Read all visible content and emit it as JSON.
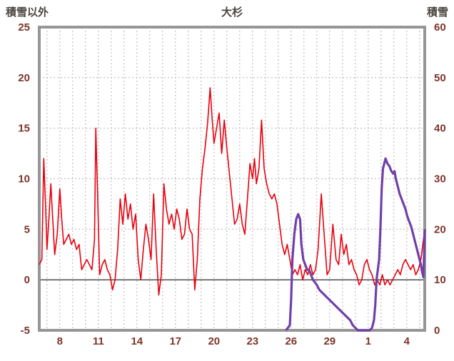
{
  "titles": {
    "left": "積雪以外",
    "center": "大杉",
    "right": "積雪"
  },
  "colors": {
    "temperature": "#e8000d",
    "snow": "#7040a8",
    "grid": "#b3b3b3",
    "frame": "#969696",
    "zero_line": "#4d4d4d",
    "tick_text": "#7d352b",
    "title_text": "#4a453f",
    "background": "#ffffff"
  },
  "chart_data": {
    "type": "line",
    "title": "大杉",
    "grid": true,
    "legend": "none",
    "left_axis": {
      "label": "積雪以外",
      "min": -5,
      "max": 25,
      "ticks": [
        25,
        20,
        15,
        10,
        5,
        0,
        -5
      ]
    },
    "right_axis": {
      "label": "積雪",
      "min": 0,
      "max": 60,
      "ticks": [
        60,
        50,
        40,
        30,
        20,
        10,
        0
      ]
    },
    "x_axis": {
      "day_min": 6.4,
      "day_max": 36.4,
      "minor_grid_step": 1,
      "tick_days": [
        8,
        11,
        14,
        17,
        20,
        23,
        26,
        29,
        32,
        35
      ],
      "tick_labels": [
        "8",
        "11",
        "14",
        "17",
        "20",
        "23",
        "26",
        "29",
        "1",
        "4"
      ]
    },
    "series": [
      {
        "name": "積雪以外",
        "axis": "left",
        "color": "#e8000d",
        "width": 1.6,
        "points": [
          [
            6.4,
            1.5
          ],
          [
            6.6,
            2
          ],
          [
            6.75,
            12
          ],
          [
            6.9,
            7
          ],
          [
            7.0,
            3
          ],
          [
            7.15,
            6
          ],
          [
            7.3,
            9.5
          ],
          [
            7.45,
            6
          ],
          [
            7.6,
            2.5
          ],
          [
            7.8,
            4.5
          ],
          [
            8.0,
            9
          ],
          [
            8.15,
            6
          ],
          [
            8.3,
            3.5
          ],
          [
            8.5,
            4
          ],
          [
            8.7,
            4.5
          ],
          [
            8.9,
            3.5
          ],
          [
            9.1,
            4
          ],
          [
            9.3,
            3
          ],
          [
            9.5,
            3.5
          ],
          [
            9.7,
            1
          ],
          [
            9.9,
            1.5
          ],
          [
            10.1,
            2
          ],
          [
            10.3,
            1.5
          ],
          [
            10.5,
            1
          ],
          [
            10.7,
            4
          ],
          [
            10.8,
            15
          ],
          [
            10.95,
            8
          ],
          [
            11.1,
            0.5
          ],
          [
            11.3,
            1.5
          ],
          [
            11.5,
            2
          ],
          [
            11.7,
            1
          ],
          [
            11.9,
            0.5
          ],
          [
            12.1,
            -1
          ],
          [
            12.3,
            0
          ],
          [
            12.5,
            3
          ],
          [
            12.7,
            8
          ],
          [
            12.9,
            5.5
          ],
          [
            13.1,
            8.5
          ],
          [
            13.3,
            6
          ],
          [
            13.5,
            7.5
          ],
          [
            13.7,
            5
          ],
          [
            13.9,
            6.5
          ],
          [
            14.1,
            2
          ],
          [
            14.3,
            0
          ],
          [
            14.5,
            3
          ],
          [
            14.7,
            5.5
          ],
          [
            14.9,
            4
          ],
          [
            15.1,
            2
          ],
          [
            15.3,
            8.5
          ],
          [
            15.5,
            3
          ],
          [
            15.7,
            -1.5
          ],
          [
            15.9,
            0.5
          ],
          [
            16.1,
            9.5
          ],
          [
            16.3,
            7
          ],
          [
            16.5,
            5.5
          ],
          [
            16.7,
            6.5
          ],
          [
            16.9,
            5
          ],
          [
            17.1,
            7
          ],
          [
            17.3,
            6
          ],
          [
            17.5,
            4
          ],
          [
            17.7,
            4.5
          ],
          [
            17.9,
            7
          ],
          [
            18.1,
            5
          ],
          [
            18.3,
            4.5
          ],
          [
            18.5,
            -1
          ],
          [
            18.7,
            2
          ],
          [
            18.9,
            8
          ],
          [
            19.1,
            11
          ],
          [
            19.3,
            13
          ],
          [
            19.5,
            15.5
          ],
          [
            19.7,
            19
          ],
          [
            19.85,
            16
          ],
          [
            20.0,
            13.5
          ],
          [
            20.2,
            15
          ],
          [
            20.4,
            16.5
          ],
          [
            20.6,
            12.5
          ],
          [
            20.8,
            15.8
          ],
          [
            21.0,
            13
          ],
          [
            21.2,
            10.5
          ],
          [
            21.4,
            8
          ],
          [
            21.6,
            5.5
          ],
          [
            21.8,
            6
          ],
          [
            22.0,
            7.5
          ],
          [
            22.2,
            5.5
          ],
          [
            22.4,
            4.5
          ],
          [
            22.6,
            8
          ],
          [
            22.8,
            11.5
          ],
          [
            23.0,
            10
          ],
          [
            23.15,
            12
          ],
          [
            23.3,
            9.5
          ],
          [
            23.5,
            11
          ],
          [
            23.7,
            15.8
          ],
          [
            23.9,
            11
          ],
          [
            24.1,
            9.5
          ],
          [
            24.3,
            8.5
          ],
          [
            24.5,
            8
          ],
          [
            24.7,
            8.5
          ],
          [
            24.9,
            7.5
          ],
          [
            25.1,
            5.5
          ],
          [
            25.3,
            3.5
          ],
          [
            25.5,
            2.5
          ],
          [
            25.7,
            3.5
          ],
          [
            25.9,
            2
          ],
          [
            26.1,
            0.5
          ],
          [
            26.3,
            1
          ],
          [
            26.5,
            0.5
          ],
          [
            26.7,
            1.5
          ],
          [
            26.9,
            0
          ],
          [
            27.1,
            1
          ],
          [
            27.3,
            0.5
          ],
          [
            27.5,
            1.5
          ],
          [
            27.7,
            0.5
          ],
          [
            27.9,
            1
          ],
          [
            28.1,
            3
          ],
          [
            28.35,
            8.5
          ],
          [
            28.6,
            4
          ],
          [
            28.8,
            0.5
          ],
          [
            29.0,
            1
          ],
          [
            29.25,
            5.5
          ],
          [
            29.5,
            2
          ],
          [
            29.7,
            1.5
          ],
          [
            29.9,
            4.5
          ],
          [
            30.1,
            2.5
          ],
          [
            30.3,
            3.5
          ],
          [
            30.5,
            1.5
          ],
          [
            30.7,
            2
          ],
          [
            30.9,
            1
          ],
          [
            31.1,
            0.5
          ],
          [
            31.3,
            -0.5
          ],
          [
            31.5,
            0
          ],
          [
            31.7,
            1.5
          ],
          [
            31.9,
            2
          ],
          [
            32.1,
            1
          ],
          [
            32.3,
            0.5
          ],
          [
            32.5,
            -0.5
          ],
          [
            32.7,
            0
          ],
          [
            32.9,
            -0.5
          ],
          [
            33.1,
            0.5
          ],
          [
            33.3,
            -0.5
          ],
          [
            33.5,
            0
          ],
          [
            33.7,
            -0.5
          ],
          [
            33.9,
            0
          ],
          [
            34.1,
            0.5
          ],
          [
            34.3,
            1
          ],
          [
            34.5,
            0.5
          ],
          [
            34.7,
            1.5
          ],
          [
            34.9,
            2
          ],
          [
            35.1,
            1.5
          ],
          [
            35.3,
            1
          ],
          [
            35.5,
            1.5
          ],
          [
            35.7,
            0.5
          ],
          [
            35.9,
            1
          ],
          [
            36.1,
            2
          ],
          [
            36.25,
            3.5
          ],
          [
            36.4,
            5
          ]
        ]
      },
      {
        "name": "積雪",
        "axis": "right",
        "color": "#7040a8",
        "width": 3.2,
        "points": [
          [
            25.6,
            0
          ],
          [
            25.9,
            1
          ],
          [
            26.0,
            6
          ],
          [
            26.1,
            14
          ],
          [
            26.25,
            19
          ],
          [
            26.4,
            22
          ],
          [
            26.55,
            23
          ],
          [
            26.7,
            22
          ],
          [
            26.8,
            17
          ],
          [
            26.95,
            14
          ],
          [
            27.1,
            13
          ],
          [
            27.25,
            12
          ],
          [
            27.4,
            12
          ],
          [
            27.55,
            11
          ],
          [
            27.7,
            10
          ],
          [
            27.85,
            9.5
          ],
          [
            28.0,
            9
          ],
          [
            28.2,
            8
          ],
          [
            28.4,
            7.5
          ],
          [
            28.6,
            7
          ],
          [
            28.8,
            6.5
          ],
          [
            29.0,
            6
          ],
          [
            29.2,
            5.5
          ],
          [
            29.4,
            5
          ],
          [
            29.6,
            4.5
          ],
          [
            29.8,
            4
          ],
          [
            30.0,
            3.5
          ],
          [
            30.2,
            3
          ],
          [
            30.4,
            2.5
          ],
          [
            30.6,
            2
          ],
          [
            30.8,
            1
          ],
          [
            31.0,
            0.5
          ],
          [
            31.2,
            0
          ],
          [
            31.5,
            0
          ],
          [
            31.8,
            0
          ],
          [
            32.1,
            0
          ],
          [
            32.3,
            0.5
          ],
          [
            32.45,
            2
          ],
          [
            32.55,
            5
          ],
          [
            32.65,
            10
          ],
          [
            32.75,
            12
          ],
          [
            32.85,
            14
          ],
          [
            32.95,
            20
          ],
          [
            33.05,
            28
          ],
          [
            33.15,
            32
          ],
          [
            33.25,
            33
          ],
          [
            33.35,
            34
          ],
          [
            33.5,
            33
          ],
          [
            33.65,
            32.5
          ],
          [
            33.8,
            31.5
          ],
          [
            33.95,
            31
          ],
          [
            34.05,
            31.5
          ],
          [
            34.15,
            30
          ],
          [
            34.3,
            28.5
          ],
          [
            34.45,
            27
          ],
          [
            34.6,
            26
          ],
          [
            34.75,
            25
          ],
          [
            34.9,
            24
          ],
          [
            35.05,
            22.5
          ],
          [
            35.2,
            21.5
          ],
          [
            35.35,
            20.5
          ],
          [
            35.5,
            19
          ],
          [
            35.65,
            17.5
          ],
          [
            35.8,
            16
          ],
          [
            35.95,
            14.5
          ],
          [
            36.1,
            13
          ],
          [
            36.2,
            11.5
          ],
          [
            36.3,
            10.5
          ],
          [
            36.4,
            20
          ]
        ]
      }
    ]
  }
}
